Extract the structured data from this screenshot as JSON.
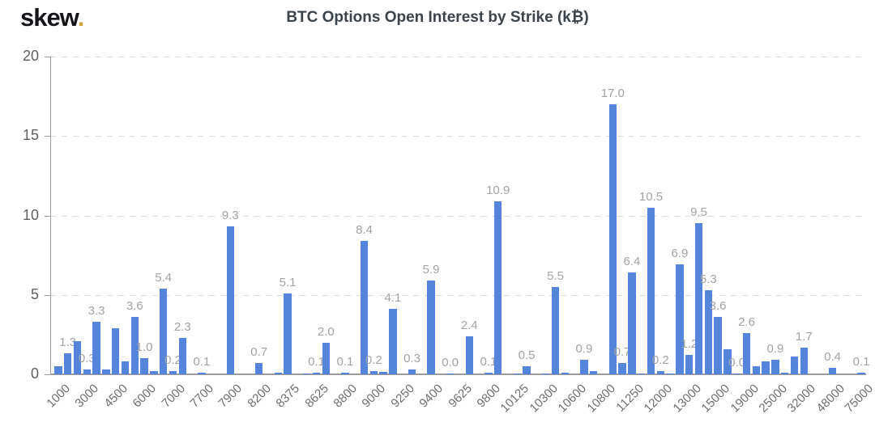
{
  "brand": {
    "name": "skew",
    "dot": "."
  },
  "chart_data": {
    "type": "bar",
    "title": "BTC Options Open Interest by Strike (k₿)",
    "xlabel": "",
    "ylabel": "",
    "ylim": [
      0,
      20
    ],
    "yticks": [
      0,
      5,
      10,
      15,
      20
    ],
    "grid": "horizontal-dashed",
    "legend": "none",
    "bar_color": "#5585DB",
    "value_label_color": "#a3a3a3",
    "x_tick_labels": [
      "1000",
      "3000",
      "4500",
      "6000",
      "7000",
      "7700",
      "7900",
      "8200",
      "8375",
      "8625",
      "8800",
      "9000",
      "9250",
      "9400",
      "9625",
      "9800",
      "10125",
      "10300",
      "10600",
      "10800",
      "11250",
      "12000",
      "13000",
      "15000",
      "19000",
      "25000",
      "32000",
      "48000",
      "75000"
    ],
    "x_tick_every_n_bars": 3,
    "bars": [
      {
        "value": 0.5
      },
      {
        "value": 1.3,
        "label": "1.3"
      },
      {
        "value": 2.1
      },
      {
        "value": 0.3,
        "label": "0.3"
      },
      {
        "value": 3.3,
        "label": "3.3"
      },
      {
        "value": 0.3
      },
      {
        "value": 2.9
      },
      {
        "value": 0.8
      },
      {
        "value": 3.6,
        "label": "3.6"
      },
      {
        "value": 1.0,
        "label": "1.0"
      },
      {
        "value": 0.2
      },
      {
        "value": 5.4,
        "label": "5.4"
      },
      {
        "value": 0.2,
        "label": "0.2"
      },
      {
        "value": 2.3,
        "label": "2.3"
      },
      {
        "value": 0
      },
      {
        "value": 0.1,
        "label": "0.1"
      },
      {
        "value": 0
      },
      {
        "value": 0
      },
      {
        "value": 9.3,
        "label": "9.3"
      },
      {
        "value": 0
      },
      {
        "value": 0
      },
      {
        "value": 0.7,
        "label": "0.7"
      },
      {
        "value": 0
      },
      {
        "value": 0.1
      },
      {
        "value": 5.1,
        "label": "5.1"
      },
      {
        "value": 0
      },
      {
        "value": 0.05
      },
      {
        "value": 0.1,
        "label": "0.1"
      },
      {
        "value": 2.0,
        "label": "2.0"
      },
      {
        "value": 0
      },
      {
        "value": 0.1,
        "label": "0.1"
      },
      {
        "value": 0
      },
      {
        "value": 8.4,
        "label": "8.4"
      },
      {
        "value": 0.2,
        "label": "0.2"
      },
      {
        "value": 0.15
      },
      {
        "value": 4.1,
        "label": "4.1"
      },
      {
        "value": 0
      },
      {
        "value": 0.3,
        "label": "0.3"
      },
      {
        "value": 0
      },
      {
        "value": 5.9,
        "label": "5.9"
      },
      {
        "value": 0
      },
      {
        "value": 0.05,
        "label": "0.0"
      },
      {
        "value": 0
      },
      {
        "value": 2.4,
        "label": "2.4"
      },
      {
        "value": 0
      },
      {
        "value": 0.1,
        "label": "0.1"
      },
      {
        "value": 10.9,
        "label": "10.9"
      },
      {
        "value": 0
      },
      {
        "value": 0.05
      },
      {
        "value": 0.5,
        "label": "0.5"
      },
      {
        "value": 0
      },
      {
        "value": 0.05
      },
      {
        "value": 5.5,
        "label": "5.5"
      },
      {
        "value": 0.1
      },
      {
        "value": 0
      },
      {
        "value": 0.9,
        "label": "0.9"
      },
      {
        "value": 0.2
      },
      {
        "value": 0
      },
      {
        "value": 17.0,
        "label": "17.0"
      },
      {
        "value": 0.7,
        "label": "0.7"
      },
      {
        "value": 6.4,
        "label": "6.4"
      },
      {
        "value": 0.05
      },
      {
        "value": 10.5,
        "label": "10.5"
      },
      {
        "value": 0.2,
        "label": "0.2"
      },
      {
        "value": 0.05
      },
      {
        "value": 6.9,
        "label": "6.9"
      },
      {
        "value": 1.2,
        "label": "1.2"
      },
      {
        "value": 9.5,
        "label": "9.5"
      },
      {
        "value": 5.3,
        "label": "5.3"
      },
      {
        "value": 3.6,
        "label": "3.6"
      },
      {
        "value": 1.6
      },
      {
        "value": 0.05,
        "label": "0.0"
      },
      {
        "value": 2.6,
        "label": "2.6"
      },
      {
        "value": 0.5
      },
      {
        "value": 0.8
      },
      {
        "value": 0.9,
        "label": "0.9"
      },
      {
        "value": 0.1
      },
      {
        "value": 1.1
      },
      {
        "value": 1.7,
        "label": "1.7"
      },
      {
        "value": 0
      },
      {
        "value": 0
      },
      {
        "value": 0.4,
        "label": "0.4"
      },
      {
        "value": 0
      },
      {
        "value": 0
      },
      {
        "value": 0.1,
        "label": "0.1"
      }
    ]
  }
}
